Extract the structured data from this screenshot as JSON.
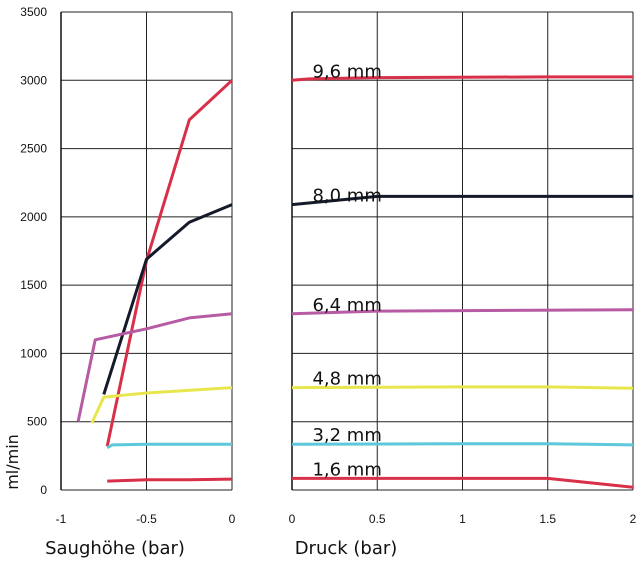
{
  "chart_data": {
    "type": "line",
    "ylabel": "ml/min",
    "ylim": [
      0,
      3500
    ],
    "yticks": [
      0,
      500,
      1000,
      1500,
      2000,
      2500,
      3000,
      3500
    ],
    "panels": [
      {
        "xlabel": "Saughöhe (bar)",
        "xlim": [
          -1,
          0
        ],
        "xticks": [
          -1,
          -0.5,
          0
        ],
        "tick_labels": [
          "-1",
          "-0.5",
          "0"
        ],
        "series": [
          {
            "color": "#d9304a",
            "points": [
              [
                -0.73,
                320
              ],
              [
                -0.5,
                1680
              ],
              [
                -0.25,
                2710
              ],
              [
                0,
                3000
              ]
            ]
          },
          {
            "color": "#151a2a",
            "points": [
              [
                -0.75,
                700
              ],
              [
                -0.5,
                1690
              ],
              [
                -0.25,
                1960
              ],
              [
                0,
                2090
              ]
            ]
          },
          {
            "color": "#b85ba5",
            "points": [
              [
                -0.9,
                500
              ],
              [
                -0.8,
                1100
              ],
              [
                -0.5,
                1180
              ],
              [
                -0.25,
                1260
              ],
              [
                0,
                1290
              ]
            ]
          },
          {
            "color": "#e7e64c",
            "points": [
              [
                -0.82,
                490
              ],
              [
                -0.75,
                680
              ],
              [
                -0.5,
                710
              ],
              [
                0,
                750
              ]
            ]
          },
          {
            "color": "#5dc8dc",
            "points": [
              [
                -0.73,
                310
              ],
              [
                -0.7,
                330
              ],
              [
                -0.5,
                335
              ],
              [
                0,
                335
              ]
            ]
          },
          {
            "color": "#d9304a",
            "points": [
              [
                -0.73,
                65
              ],
              [
                -0.5,
                75
              ],
              [
                -0.25,
                75
              ],
              [
                0,
                80
              ]
            ]
          }
        ]
      },
      {
        "xlabel": "Druck (bar)",
        "xlim": [
          0,
          2
        ],
        "xticks": [
          0,
          0.5,
          1,
          1.5,
          2
        ],
        "tick_labels": [
          "0",
          "0.5",
          "1",
          "1.5",
          "2"
        ],
        "series": [
          {
            "name": "9,6 mm",
            "color": "#d9304a",
            "points": [
              [
                0,
                3000
              ],
              [
                0.1,
                3010
              ],
              [
                0.5,
                3020
              ],
              [
                1.5,
                3025
              ],
              [
                2,
                3025
              ]
            ]
          },
          {
            "name": "8,0 mm",
            "color": "#151a2a",
            "points": [
              [
                0,
                2090
              ],
              [
                0.25,
                2120
              ],
              [
                0.5,
                2150
              ],
              [
                1,
                2150
              ],
              [
                2,
                2150
              ]
            ]
          },
          {
            "name": "6,4 mm",
            "color": "#b85ba5",
            "points": [
              [
                0,
                1290
              ],
              [
                0.5,
                1310
              ],
              [
                2,
                1320
              ]
            ]
          },
          {
            "name": "4,8 mm",
            "color": "#e7e64c",
            "points": [
              [
                0,
                750
              ],
              [
                1,
                755
              ],
              [
                1.5,
                755
              ],
              [
                2,
                745
              ]
            ]
          },
          {
            "name": "3,2 mm",
            "color": "#5dc8dc",
            "points": [
              [
                0,
                335
              ],
              [
                1,
                338
              ],
              [
                1.5,
                338
              ],
              [
                2,
                330
              ]
            ]
          },
          {
            "name": "1,6 mm",
            "color": "#d9304a",
            "points": [
              [
                0,
                85
              ],
              [
                0.5,
                85
              ],
              [
                1.5,
                85
              ],
              [
                2,
                20
              ]
            ]
          }
        ]
      }
    ]
  }
}
